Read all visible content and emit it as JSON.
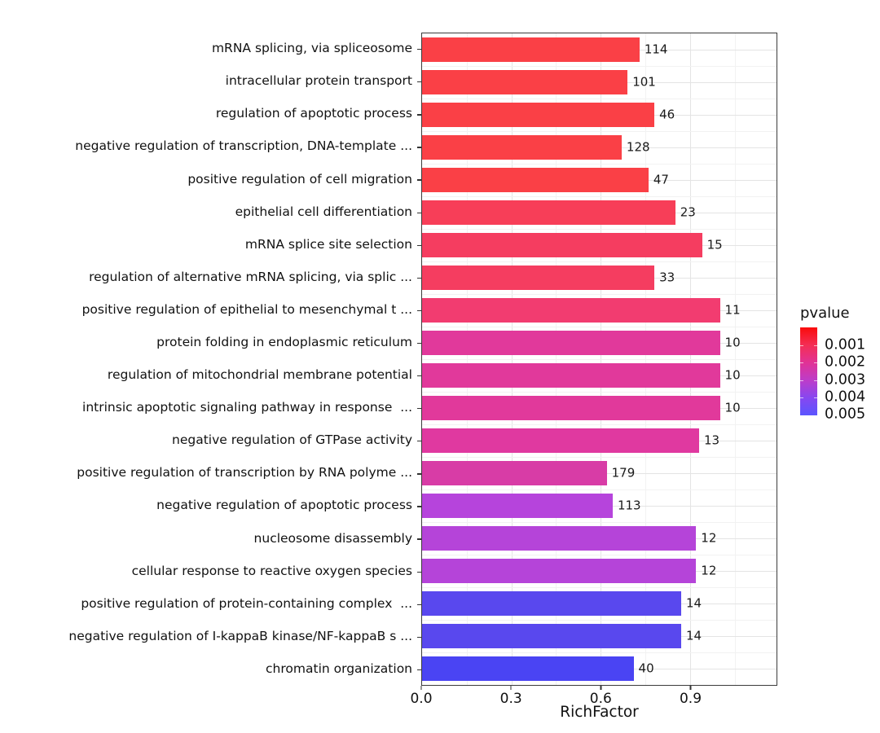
{
  "chart_data": {
    "type": "bar",
    "orientation": "horizontal",
    "title": "",
    "xlabel": "RichFactor",
    "ylabel": "",
    "xlim": [
      0,
      1.19
    ],
    "x_tick_labels": [
      "0.0",
      "0.3",
      "0.6",
      "0.9"
    ],
    "x_tick_values": [
      0,
      0.3,
      0.6,
      0.9
    ],
    "x_major_gridline_values": [
      0.3,
      0.6,
      0.9
    ],
    "x_minor_gridline_values": [
      0.15,
      0.45,
      0.75,
      1.05
    ],
    "grid": "light-gray major and minor vertical gridlines; major horizontal gridline at each category center, minor at row boundaries",
    "bar_end_labels_are": "gene count",
    "bars": [
      {
        "label": "mRNA splicing, via spliceosome",
        "richfactor": 0.73,
        "count": 114,
        "color": "#fa4046"
      },
      {
        "label": "intracellular protein transport",
        "richfactor": 0.69,
        "count": 101,
        "color": "#fa4046"
      },
      {
        "label": "regulation of apoptotic process",
        "richfactor": 0.78,
        "count": 46,
        "color": "#fa4046"
      },
      {
        "label": "negative regulation of transcription, DNA-template ...",
        "richfactor": 0.67,
        "count": 128,
        "color": "#fa4046"
      },
      {
        "label": "positive regulation of cell migration",
        "richfactor": 0.76,
        "count": 47,
        "color": "#fa4046"
      },
      {
        "label": "epithelial cell differentiation",
        "richfactor": 0.85,
        "count": 23,
        "color": "#f73e58"
      },
      {
        "label": "mRNA splice site selection",
        "richfactor": 0.94,
        "count": 15,
        "color": "#f53d60"
      },
      {
        "label": "regulation of alternative mRNA splicing, via splic ...",
        "richfactor": 0.78,
        "count": 33,
        "color": "#f53d60"
      },
      {
        "label": "positive regulation of epithelial to mesenchymal t ...",
        "richfactor": 1.0,
        "count": 11,
        "color": "#f23c70"
      },
      {
        "label": "protein folding in endoplasmic reticulum",
        "richfactor": 1.0,
        "count": 10,
        "color": "#e1399b"
      },
      {
        "label": "regulation of mitochondrial membrane potential",
        "richfactor": 1.0,
        "count": 10,
        "color": "#e1399b"
      },
      {
        "label": "intrinsic apoptotic signaling pathway in response  ...",
        "richfactor": 1.0,
        "count": 10,
        "color": "#e1399b"
      },
      {
        "label": "negative regulation of GTPase activity",
        "richfactor": 0.93,
        "count": 13,
        "color": "#e039a0"
      },
      {
        "label": "positive regulation of transcription by RNA polyme ...",
        "richfactor": 0.62,
        "count": 179,
        "color": "#d83ca6"
      },
      {
        "label": "negative regulation of apoptotic process",
        "richfactor": 0.64,
        "count": 113,
        "color": "#b644dc"
      },
      {
        "label": "nucleosome disassembly",
        "richfactor": 0.92,
        "count": 12,
        "color": "#b544d9"
      },
      {
        "label": "cellular response to reactive oxygen species",
        "richfactor": 0.92,
        "count": 12,
        "color": "#b544d9"
      },
      {
        "label": "positive regulation of protein-containing complex  ...",
        "richfactor": 0.87,
        "count": 14,
        "color": "#5948ee"
      },
      {
        "label": "negative regulation of I-kappaB kinase/NF-kappaB s ...",
        "richfactor": 0.87,
        "count": 14,
        "color": "#5948ee"
      },
      {
        "label": "chromatin organization",
        "richfactor": 0.71,
        "count": 40,
        "color": "#4a44f3"
      }
    ],
    "legend": {
      "title": "pvalue",
      "position": "right",
      "tick_labels": [
        "0.001",
        "0.002",
        "0.003",
        "0.004",
        "0.005"
      ],
      "tick_values": [
        0.001,
        0.002,
        0.003,
        0.004,
        0.005
      ],
      "gradient_stops": [
        {
          "offset": 0.0,
          "color": "#fa0b0b"
        },
        {
          "offset": 0.2,
          "color": "#f42e55"
        },
        {
          "offset": 0.4,
          "color": "#e13295"
        },
        {
          "offset": 0.6,
          "color": "#bd3cc9"
        },
        {
          "offset": 0.8,
          "color": "#8747f0"
        },
        {
          "offset": 1.0,
          "color": "#5b55ff"
        }
      ]
    },
    "colors": {
      "panel_border": "#3c3c3c",
      "major_gridline": "#e4e4e4",
      "minor_gridline": "#f2f2f2",
      "text": "#1a1a1a",
      "background": "#ffffff"
    }
  }
}
